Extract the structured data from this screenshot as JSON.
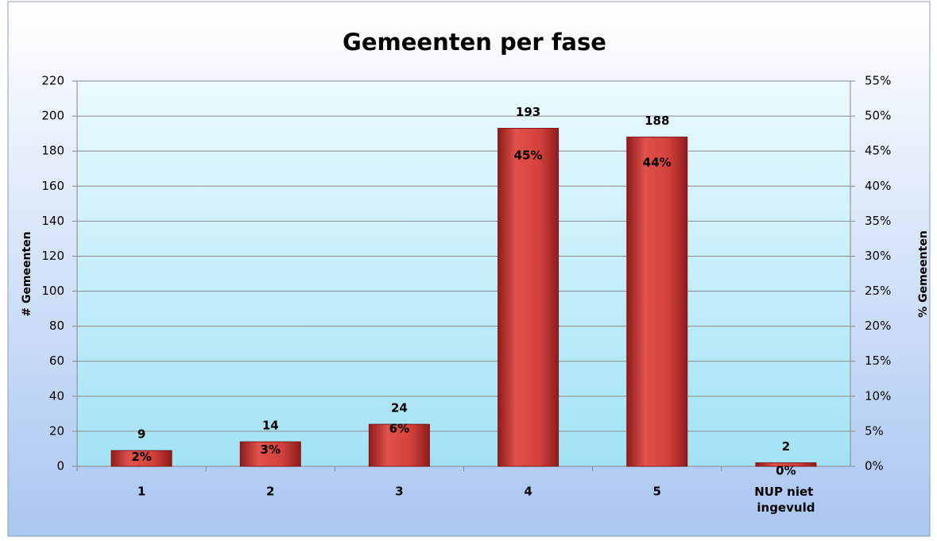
{
  "chart_data": {
    "type": "bar",
    "title": "Gemeenten per fase",
    "ylabel": "# Gemeenten",
    "y2label": "% Gemeenten",
    "categories": [
      "1",
      "2",
      "3",
      "4",
      "5",
      "NUP niet ingevuld"
    ],
    "series": [
      {
        "color": "#c8322e",
        "values": [
          9,
          14,
          24,
          193,
          188,
          2
        ]
      },
      {
        "axis": "y2",
        "values": [
          2,
          3,
          6,
          45,
          44,
          0
        ],
        "value_labels": [
          "2%",
          "3%",
          "6%",
          "45%",
          "44%",
          "0%"
        ]
      }
    ],
    "ylim": [
      0,
      220
    ],
    "yticks": [
      0,
      20,
      40,
      60,
      80,
      100,
      120,
      140,
      160,
      180,
      200,
      220
    ],
    "y2lim": [
      0,
      55
    ],
    "y2ticks": [
      {
        "value": 0,
        "label": "0%"
      },
      {
        "value": 5,
        "label": "5%"
      },
      {
        "value": 10,
        "label": "10%"
      },
      {
        "value": 15,
        "label": "15%"
      },
      {
        "value": 20,
        "label": "20%"
      },
      {
        "value": 25,
        "label": "25%"
      },
      {
        "value": 30,
        "label": "30%"
      },
      {
        "value": 35,
        "label": "35%"
      },
      {
        "value": 40,
        "label": "40%"
      },
      {
        "value": 45,
        "label": "45%"
      },
      {
        "value": 50,
        "label": "50%"
      },
      {
        "value": 55,
        "label": "55%"
      }
    ],
    "grid": true
  }
}
